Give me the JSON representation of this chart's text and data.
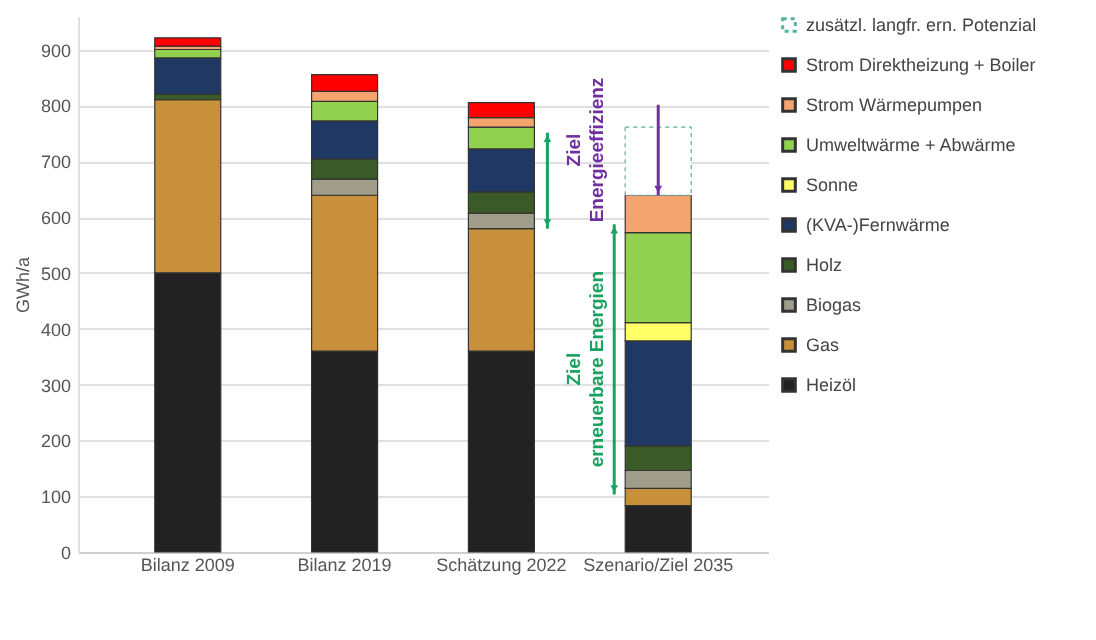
{
  "chart_data": {
    "type": "bar",
    "stacked": true,
    "ylabel": "GWh/a",
    "categories": [
      "Bilanz 2009",
      "Bilanz 2019",
      "Schätzung 2022",
      "Szenario/Ziel 2035"
    ],
    "ylim": [
      0,
      960
    ],
    "yticks": [
      0,
      100,
      200,
      300,
      400,
      500,
      600,
      700,
      800,
      900
    ],
    "grid": "y",
    "legend": "right",
    "series": [
      {
        "name": "Heizöl",
        "color": "#222222",
        "values": [
          500,
          360,
          360,
          83
        ]
      },
      {
        "name": "Gas",
        "color": "#c8903a",
        "values": [
          310,
          279,
          219,
          31
        ]
      },
      {
        "name": "Biogas",
        "color": "#a09e8a",
        "values": [
          null,
          29,
          28,
          32
        ]
      },
      {
        "name": "Holz",
        "color": "#3a5a28",
        "values": [
          10,
          36,
          38,
          44
        ]
      },
      {
        "name": "(KVA-)Fernwärme",
        "color": "#1f3864",
        "values": [
          65,
          68,
          77,
          188
        ]
      },
      {
        "name": "Sonne",
        "color": "#ffff66",
        "values": [
          null,
          null,
          null,
          33
        ]
      },
      {
        "name": "Umweltwärme + Abwärme",
        "color": "#92d050",
        "values": [
          15,
          35,
          39,
          161
        ]
      },
      {
        "name": "Strom Wärmepumpen",
        "color": "#f4a46e",
        "values": [
          6,
          18,
          17,
          67
        ]
      },
      {
        "name": "Strom Direktheizung + Boiler",
        "color": "#ff0000",
        "values": [
          15,
          30,
          27,
          null
        ]
      },
      {
        "name": "zusätzl. langfr. ern. Potenzial",
        "color": "#4fb3a0",
        "line_style": "dotted",
        "values": [
          null,
          null,
          null,
          122
        ]
      }
    ],
    "annotations": [
      "Ziel\nEnergieeffizienz",
      "Ziel\nerneuerbare Energien"
    ]
  }
}
